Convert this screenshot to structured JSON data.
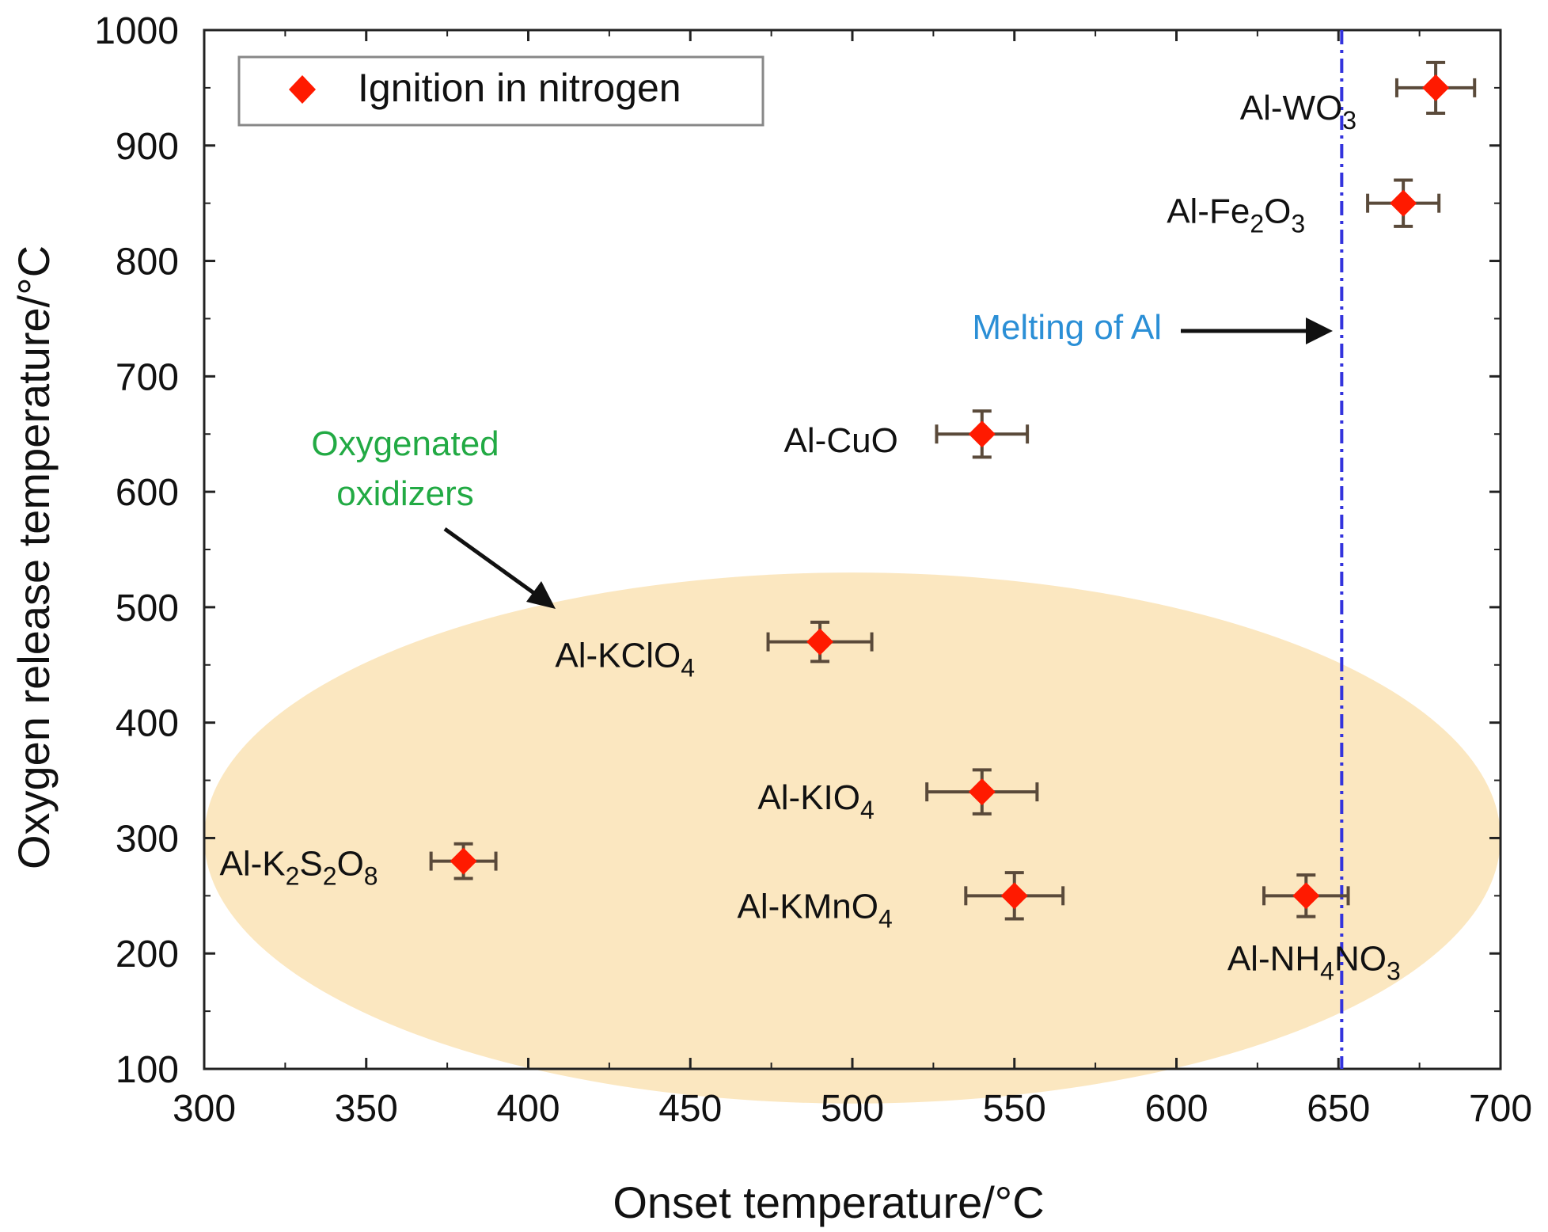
{
  "chart_data": {
    "type": "scatter",
    "xlabel": "Onset temperature/°C",
    "ylabel": "Oxygen release temperature/°C",
    "xlim": [
      300,
      700
    ],
    "ylim": [
      100,
      1000
    ],
    "xticks": [
      "300",
      "350",
      "400",
      "450",
      "500",
      "550",
      "600",
      "650",
      "700"
    ],
    "yticks": [
      "100",
      "200",
      "300",
      "400",
      "500",
      "600",
      "700",
      "800",
      "900",
      "1000"
    ],
    "legend": {
      "label": "Ignition in nitrogen",
      "position": "top-left"
    },
    "series": [
      {
        "name": "Ignition in nitrogen",
        "color": "#ff1a00",
        "points": [
          {
            "label": "Al-WO3",
            "label_main": "Al-WO",
            "label_subs": [
              "3"
            ],
            "x": 680,
            "y": 950,
            "xerr": 12,
            "yerr": 22
          },
          {
            "label": "Al-Fe2O3",
            "label_main": "Al-Fe",
            "label_subs": [
              "2",
              "O",
              "3"
            ],
            "x": 670,
            "y": 850,
            "xerr": 11,
            "yerr": 20
          },
          {
            "label": "Al-CuO",
            "label_main": "Al-CuO",
            "label_subs": [],
            "x": 540,
            "y": 650,
            "xerr": 14,
            "yerr": 20
          },
          {
            "label": "Al-KClO4",
            "label_main": "Al-KClO",
            "label_subs": [
              "4"
            ],
            "x": 490,
            "y": 470,
            "xerr": 16,
            "yerr": 17
          },
          {
            "label": "Al-KIO4",
            "label_main": "Al-KIO",
            "label_subs": [
              "4"
            ],
            "x": 540,
            "y": 340,
            "xerr": 17,
            "yerr": 19
          },
          {
            "label": "Al-K2S2O8",
            "label_main": "Al-K",
            "label_subs": [
              "2",
              "S",
              "2",
              "O",
              "8"
            ],
            "x": 380,
            "y": 280,
            "xerr": 10,
            "yerr": 15
          },
          {
            "label": "Al-KMnO4",
            "label_main": "Al-KMn",
            "label_subs": [
              "O",
              "4"
            ],
            "x": 550,
            "y": 250,
            "xerr": 15,
            "yerr": 20
          },
          {
            "label": "Al-NH4NO3",
            "label_main": "Al-NH",
            "label_subs": [
              "4",
              "NO",
              "3"
            ],
            "x": 640,
            "y": 250,
            "xerr": 13,
            "yerr": 18
          }
        ]
      }
    ],
    "reference_line": {
      "x": 651,
      "label": "Melting of Al",
      "color": "#3333dd",
      "label_color": "#2b8fd6"
    },
    "region": {
      "label_line1": "Oxygenated",
      "label_line2": "oxidizers",
      "label_color": "#22aa44",
      "fill": "#fbe7c0",
      "center_x": 500,
      "center_y": 300,
      "x_radius": 200,
      "y_radius": 230
    }
  }
}
